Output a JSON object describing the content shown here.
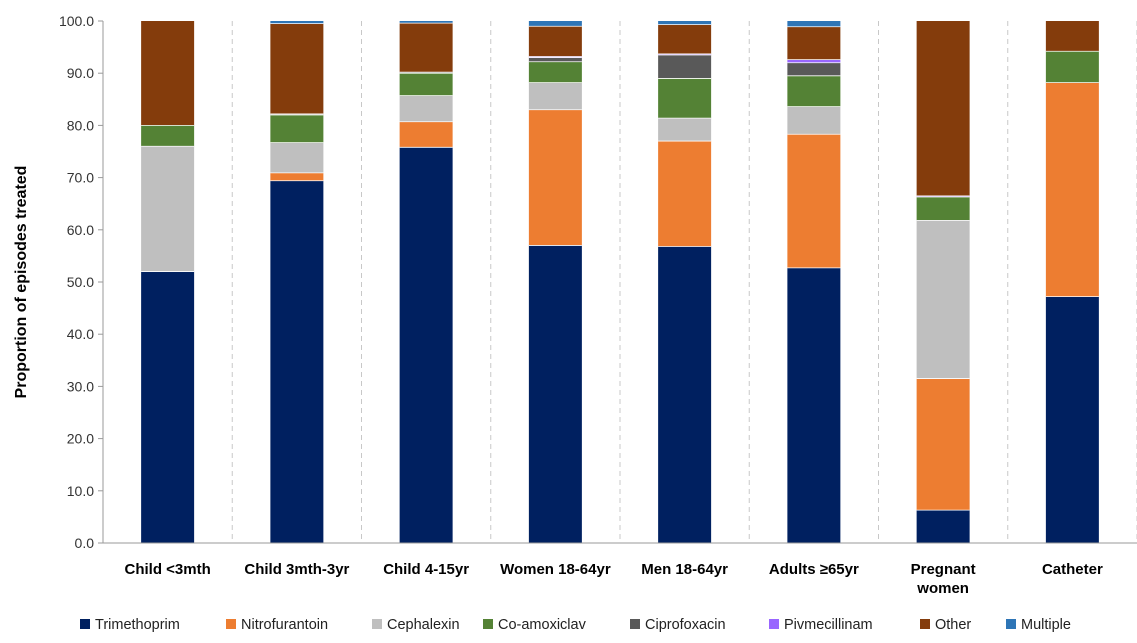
{
  "chart_data": {
    "type": "bar",
    "stacked": true,
    "title": "",
    "xlabel": "",
    "ylabel": "Proportion of episodes treated",
    "ylim": [
      0,
      100
    ],
    "yticks": [
      "0.0",
      "10.0",
      "20.0",
      "30.0",
      "40.0",
      "50.0",
      "60.0",
      "70.0",
      "80.0",
      "90.0",
      "100.0"
    ],
    "grid": "vertical dashed gridlines between categories",
    "legend_position": "bottom",
    "categories": [
      [
        "Child <3mth"
      ],
      [
        "Child 3mth-3yr"
      ],
      [
        "Child 4-15yr"
      ],
      [
        "Women 18-64yr"
      ],
      [
        "Men 18-64yr"
      ],
      [
        "Adults ≥65yr"
      ],
      [
        "Pregnant",
        "women"
      ],
      [
        "Catheter"
      ]
    ],
    "series": [
      {
        "name": "Trimethoprim",
        "color": "#002060",
        "values": [
          52.0,
          69.4,
          75.8,
          57.0,
          56.8,
          52.7,
          6.3,
          47.2
        ]
      },
      {
        "name": "Nitrofurantoin",
        "color": "#ED7D31",
        "values": [
          0.0,
          1.5,
          4.9,
          26.0,
          20.2,
          25.6,
          25.2,
          41.0
        ]
      },
      {
        "name": "Cephalexin",
        "color": "#BFBFBF",
        "values": [
          24.0,
          5.8,
          5.0,
          5.2,
          4.4,
          5.3,
          30.3,
          0.0
        ]
      },
      {
        "name": "Co-amoxiclav",
        "color": "#548235",
        "values": [
          4.0,
          5.3,
          4.3,
          4.0,
          7.6,
          5.9,
          4.5,
          6.0
        ]
      },
      {
        "name": "Ciprofoxacin",
        "color": "#595959",
        "values": [
          0.0,
          0.2,
          0.2,
          0.8,
          4.5,
          2.5,
          0.0,
          0.0
        ]
      },
      {
        "name": "Pivmecillinam",
        "color": "#9966FF",
        "values": [
          0.0,
          0.0,
          0.0,
          0.2,
          0.2,
          0.6,
          0.2,
          0.0
        ]
      },
      {
        "name": "Other",
        "color": "#843C0C",
        "values": [
          20.0,
          17.3,
          9.4,
          5.8,
          5.6,
          6.3,
          33.5,
          5.8
        ]
      },
      {
        "name": "Multiple",
        "color": "#2E75B6",
        "values": [
          0.0,
          0.5,
          0.4,
          1.0,
          0.7,
          1.1,
          0.0,
          0.0
        ]
      }
    ]
  }
}
